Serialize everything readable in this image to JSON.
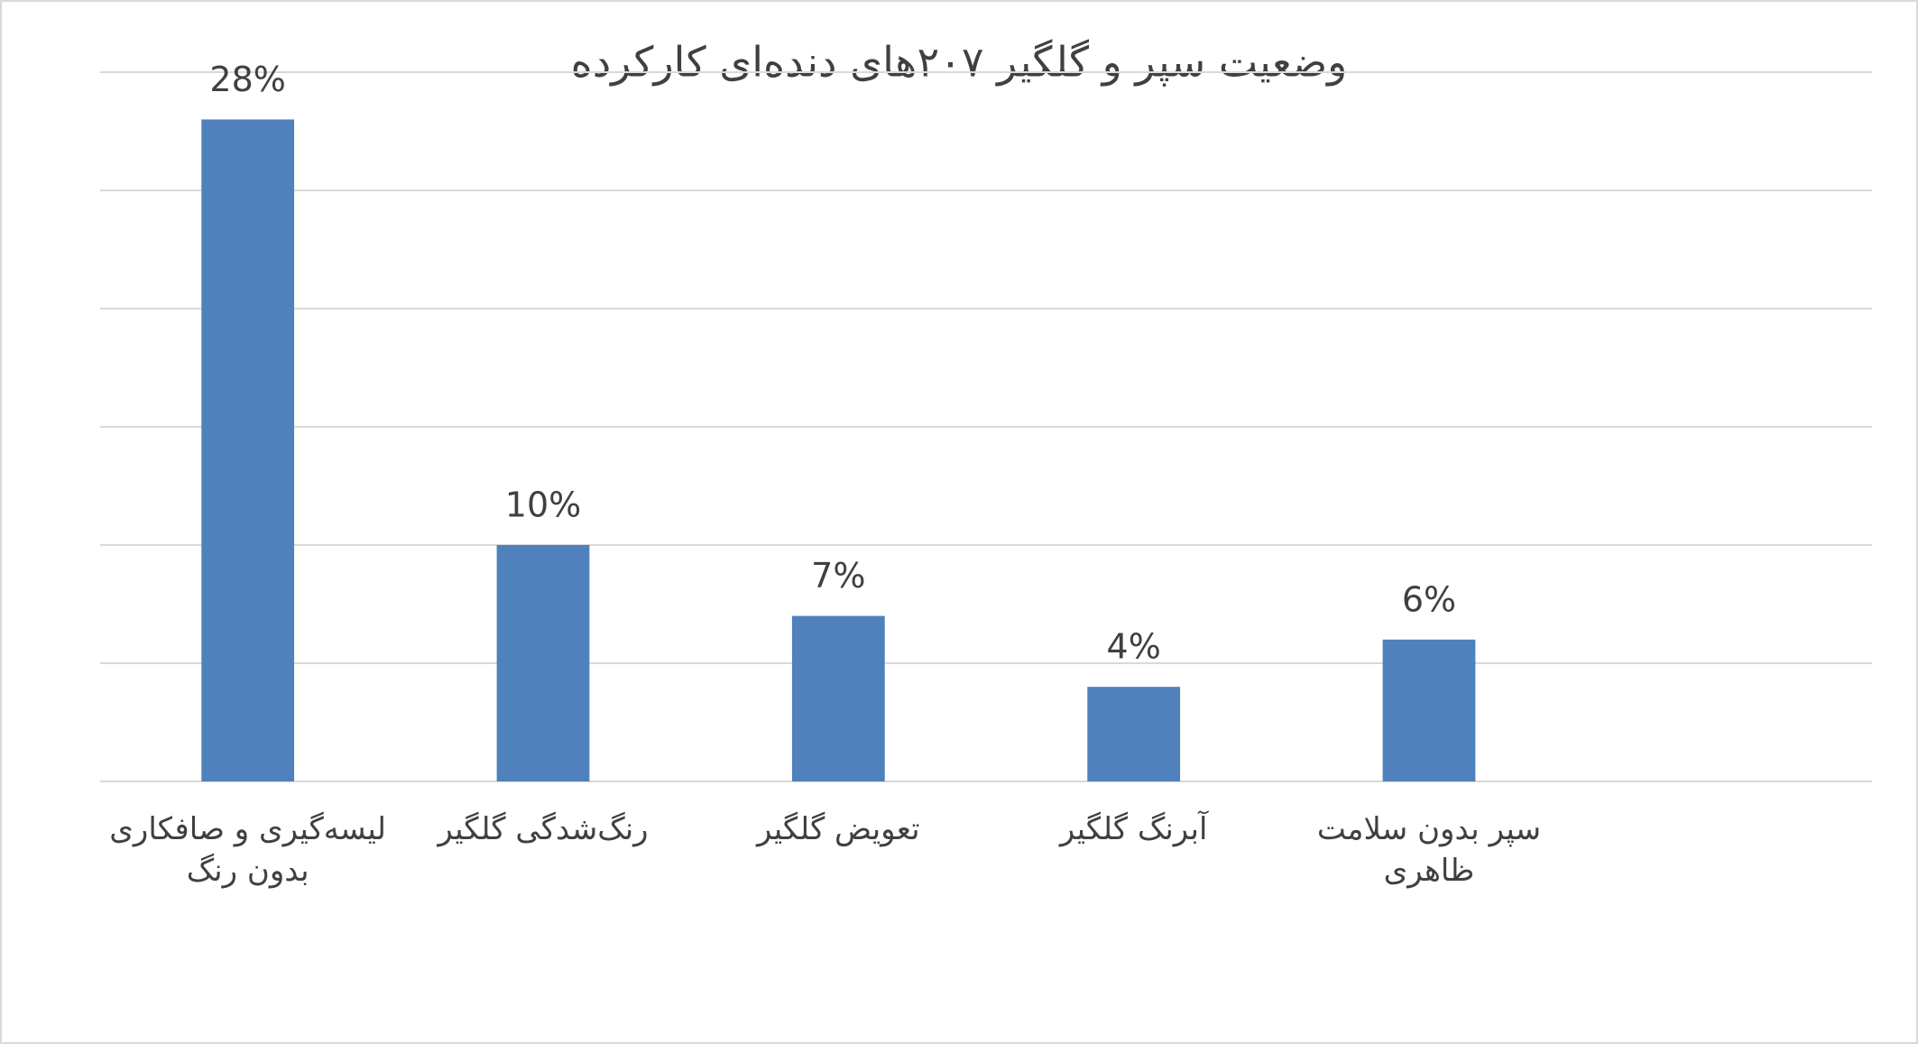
{
  "chart_data": {
    "type": "bar",
    "title": "وضعیت سپر و گلگیر ۲۰۷های دنده‌ای کارکرده",
    "categories": [
      "لیسه‌گیری و صافکاری بدون رنگ",
      "رنگ‌شدگی گلگیر",
      "تعویض گلگیر",
      "آبرنگ گلگیر",
      "سپر بدون سلامت ظاهری"
    ],
    "values": [
      28,
      10,
      7,
      4,
      6
    ],
    "value_labels": [
      "28%",
      "10%",
      "7%",
      "4%",
      "6%"
    ],
    "color": "#4f81bd",
    "ylim": [
      0,
      30
    ],
    "yticks": [
      0,
      5,
      10,
      15,
      20,
      25,
      30
    ],
    "grid": true
  }
}
